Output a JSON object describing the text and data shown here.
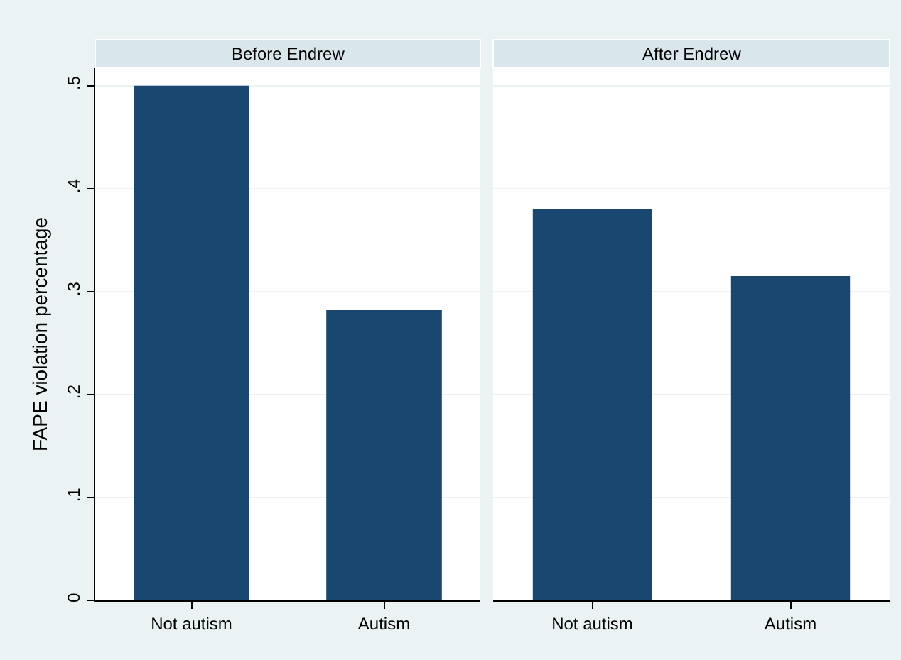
{
  "chart_data": [
    {
      "type": "bar",
      "title": "Before Endrew",
      "ylabel": "FAPE violation percentage",
      "categories": [
        "Not autism",
        "Autism"
      ],
      "values": [
        0.5,
        0.282
      ],
      "color": "#1a476f",
      "ylim": [
        0,
        0.517
      ],
      "yticks": [
        0,
        {
          "value": 0.1,
          "label": ".1"
        },
        {
          "value": 0.2,
          "label": ".2"
        },
        {
          "value": 0.3,
          "label": ".3"
        },
        {
          "value": 0.4,
          "label": ".4"
        },
        {
          "value": 0.5,
          "label": ".5"
        }
      ],
      "grid": "y"
    },
    {
      "type": "bar",
      "title": "After Endrew",
      "categories": [
        "Not autism",
        "Autism"
      ],
      "values": [
        0.38,
        0.315
      ],
      "color": "#1a476f",
      "ylim": [
        0,
        0.517
      ],
      "yticks": [
        0,
        0.1,
        0.2,
        0.3,
        0.4,
        0.5
      ],
      "grid": "y",
      "tick_labels": "x"
    }
  ]
}
